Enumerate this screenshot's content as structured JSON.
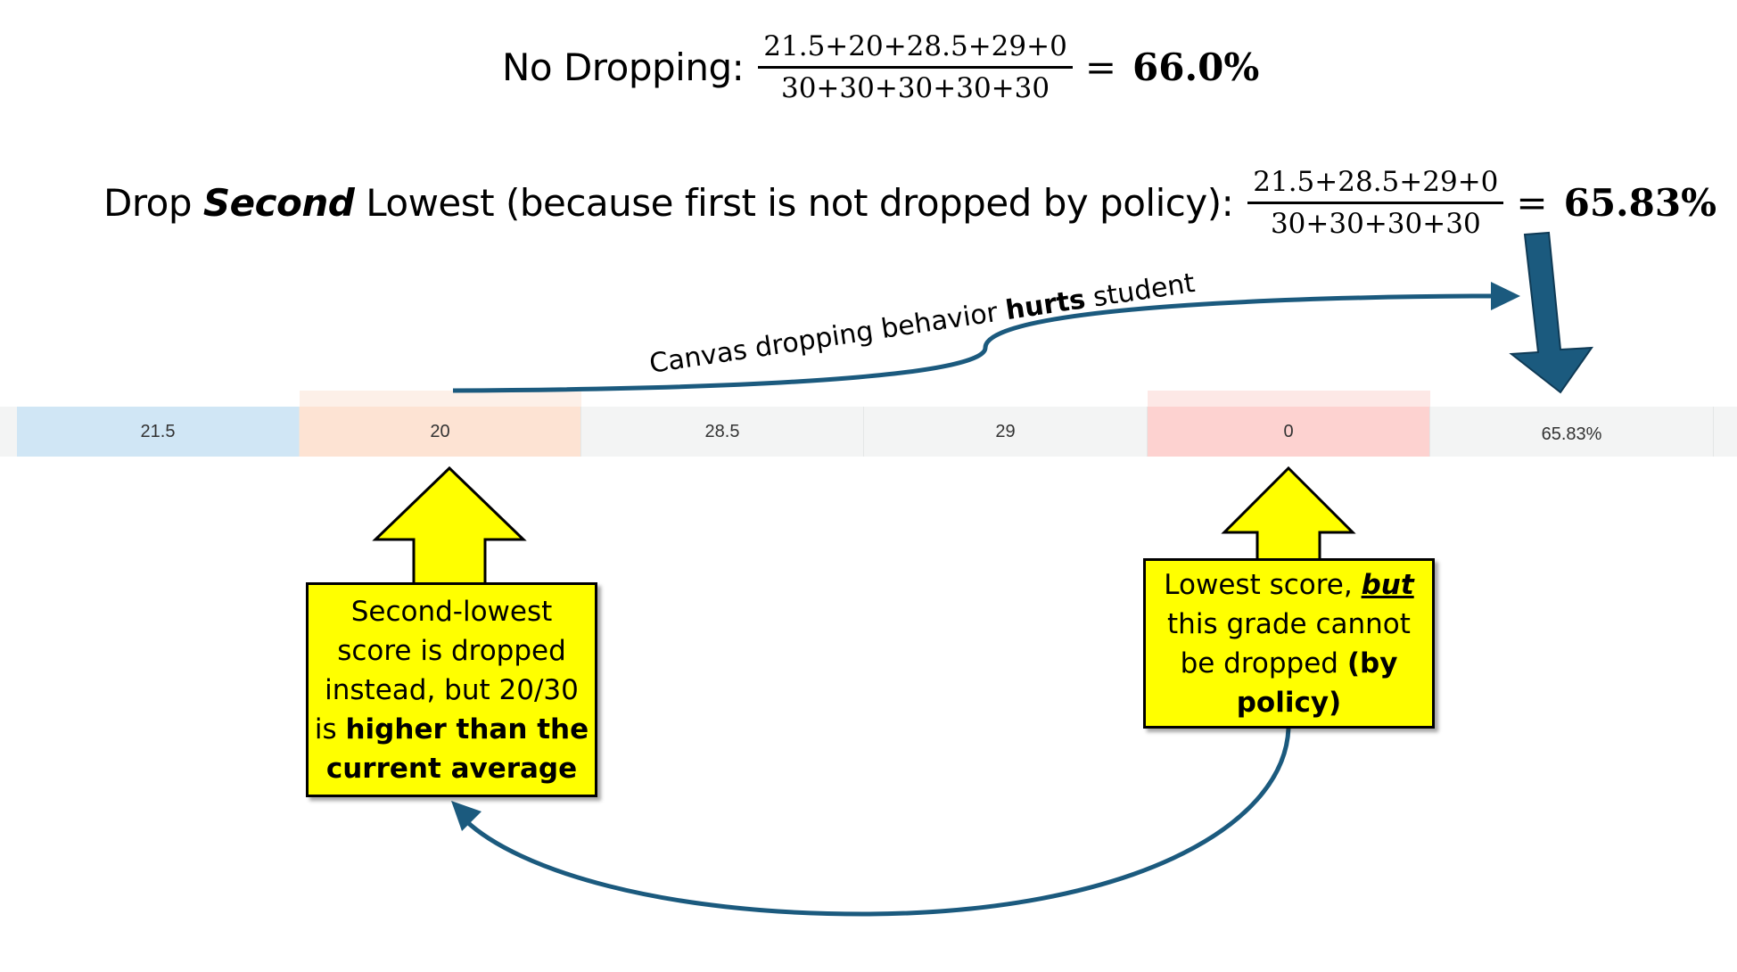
{
  "equations": {
    "no_drop": {
      "label": "No Dropping:",
      "numerator": "21.5+20+28.5+29+0",
      "denominator": "30+30+30+30+30",
      "result": "66.0%"
    },
    "drop_second": {
      "label_pre": "Drop ",
      "label_bold": "Second",
      "label_post": " Lowest (because first is not dropped by policy):",
      "numerator": "21.5+28.5+29+0",
      "denominator": "30+30+30+30",
      "result": "65.83%"
    }
  },
  "grade_row": {
    "cells": [
      "21.5",
      "20",
      "28.5",
      "29",
      "0",
      "65.83%"
    ],
    "colors": {
      "kept": "#d0e6f5",
      "dropped": "#fde3d3",
      "lowest": "#fdd2d0",
      "neutral": "#f3f4f4"
    }
  },
  "annotations": {
    "curve_label_pre": "Canvas dropping behavior ",
    "curve_label_bold": "hurts",
    "curve_label_post": " student",
    "left_callout": {
      "line1": "Second-lowest",
      "line2": "score is dropped",
      "line3": "instead, but 20/30",
      "line4_pre": "is ",
      "line4_bold": "higher than the",
      "line5_bold": "current average"
    },
    "right_callout": {
      "line1_pre": "Lowest score, ",
      "line1_emph": "but",
      "line2": "this grade cannot",
      "line3_pre": "be dropped ",
      "line3_bold": "(by",
      "line4_bold": "policy)"
    }
  },
  "colors": {
    "arrow_stroke": "#1b5a7e",
    "callout_fill": "#ffff00",
    "big_arrow_fill": "#1b5a7e"
  }
}
